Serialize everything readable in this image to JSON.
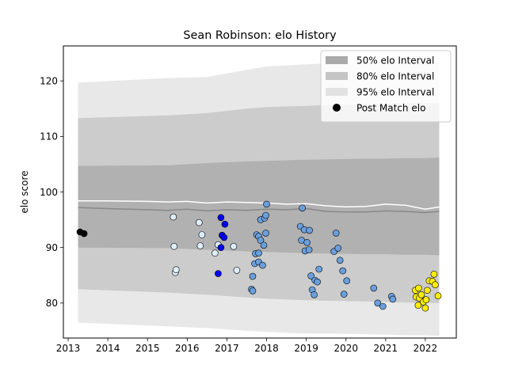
{
  "chart_data": {
    "type": "scatter",
    "title": "Sean Robinson: elo History",
    "xlabel": "",
    "ylabel": "elo score",
    "xlim": [
      2012.88,
      2022.78
    ],
    "ylim": [
      73.7,
      126.3
    ],
    "xticks": [
      2013,
      2014,
      2015,
      2016,
      2017,
      2018,
      2019,
      2020,
      2021,
      2022
    ],
    "yticks": [
      80,
      90,
      100,
      110,
      120
    ],
    "grid": false,
    "legend_position": "top-right",
    "legend": [
      {
        "label": "50% elo Interval",
        "kind": "band",
        "color": "#aaaaaa"
      },
      {
        "label": "80% elo Interval",
        "kind": "band",
        "color": "#c4c4c4"
      },
      {
        "label": "95% elo Interval",
        "kind": "band",
        "color": "#e2e2e2"
      },
      {
        "label": "Post Match elo",
        "kind": "marker",
        "color": "#000000"
      }
    ],
    "bands": {
      "x": [
        2013.25,
        2015.5,
        2016.5,
        2017.5,
        2018.0,
        2019.0,
        2019.7,
        2020.5,
        2021.0,
        2021.5,
        2022.0,
        2022.35
      ],
      "p95_upper": [
        119.7,
        120.5,
        120.7,
        122.0,
        122.6,
        123.0,
        123.2,
        123.3,
        123.4,
        123.5,
        123.5,
        123.6
      ],
      "p95_lower": [
        76.5,
        75.8,
        75.5,
        75.0,
        74.8,
        74.5,
        74.5,
        74.4,
        74.3,
        74.2,
        74.2,
        74.1
      ],
      "p80_upper": [
        113.3,
        113.8,
        114.2,
        115.0,
        115.3,
        115.5,
        115.7,
        115.8,
        115.9,
        116.0,
        116.0,
        116.0
      ],
      "p80_lower": [
        82.5,
        81.9,
        81.5,
        81.0,
        80.8,
        80.5,
        80.4,
        80.3,
        80.2,
        80.1,
        80.0,
        80.0
      ],
      "p50_upper": [
        104.7,
        104.8,
        105.2,
        105.5,
        105.6,
        105.8,
        105.9,
        106.0,
        106.0,
        106.1,
        106.1,
        106.2
      ],
      "p50_lower": [
        90.0,
        89.9,
        89.6,
        89.3,
        89.2,
        89.0,
        88.9,
        88.8,
        88.8,
        88.7,
        88.7,
        88.6
      ]
    },
    "median_line": {
      "color": "#888888",
      "x": [
        2013.25,
        2014.0,
        2015.0,
        2015.5,
        2016.0,
        2016.5,
        2017.0,
        2017.5,
        2018.0,
        2018.5,
        2019.0,
        2019.5,
        2020.0,
        2020.5,
        2021.0,
        2021.5,
        2022.0,
        2022.35
      ],
      "y": [
        97.2,
        97.0,
        96.8,
        96.7,
        96.9,
        96.6,
        96.8,
        96.7,
        96.9,
        96.8,
        97.0,
        96.5,
        96.4,
        96.4,
        96.6,
        96.5,
        96.3,
        96.5
      ]
    },
    "mean_line": {
      "color": "#ffffff",
      "x": [
        2013.25,
        2014.0,
        2015.0,
        2015.5,
        2016.0,
        2016.5,
        2017.0,
        2017.5,
        2018.0,
        2018.5,
        2019.0,
        2019.5,
        2020.0,
        2020.5,
        2021.0,
        2021.5,
        2022.0,
        2022.35
      ],
      "y": [
        98.4,
        98.4,
        98.3,
        98.2,
        98.3,
        98.0,
        98.2,
        98.1,
        98.0,
        97.8,
        97.9,
        97.5,
        97.3,
        97.4,
        97.8,
        97.6,
        96.9,
        97.3
      ]
    },
    "series": [
      {
        "color": "#000000",
        "points": [
          [
            2013.3,
            92.8
          ],
          [
            2013.4,
            92.5
          ]
        ]
      },
      {
        "color": "#ddeeff",
        "points": [
          [
            2015.65,
            95.5
          ],
          [
            2015.67,
            90.2
          ],
          [
            2015.7,
            85.5
          ],
          [
            2015.72,
            86.0
          ],
          [
            2016.3,
            94.5
          ],
          [
            2016.33,
            90.3
          ],
          [
            2016.37,
            92.3
          ],
          [
            2016.7,
            89.0
          ],
          [
            2016.78,
            90.5
          ],
          [
            2017.17,
            90.2
          ],
          [
            2017.25,
            85.9
          ]
        ]
      },
      {
        "color": "#0000ee",
        "points": [
          [
            2016.78,
            85.3
          ],
          [
            2016.85,
            95.4
          ],
          [
            2016.85,
            90.0
          ],
          [
            2016.88,
            92.2
          ],
          [
            2016.93,
            91.8
          ],
          [
            2016.95,
            94.2
          ]
        ]
      },
      {
        "color": "#6a9fdd",
        "points": [
          [
            2017.62,
            82.5
          ],
          [
            2017.65,
            82.2
          ],
          [
            2017.65,
            84.8
          ],
          [
            2017.7,
            87.1
          ],
          [
            2017.72,
            88.9
          ],
          [
            2017.75,
            92.3
          ],
          [
            2017.8,
            92.0
          ],
          [
            2017.8,
            89.0
          ],
          [
            2017.8,
            87.4
          ],
          [
            2017.85,
            91.3
          ],
          [
            2017.85,
            95.0
          ],
          [
            2017.9,
            86.8
          ],
          [
            2017.93,
            90.4
          ],
          [
            2017.95,
            95.3
          ],
          [
            2017.98,
            92.6
          ],
          [
            2017.98,
            95.8
          ],
          [
            2018.0,
            97.8
          ],
          [
            2018.85,
            93.8
          ],
          [
            2018.88,
            91.3
          ],
          [
            2018.9,
            97.1
          ],
          [
            2018.95,
            93.2
          ],
          [
            2018.97,
            89.4
          ],
          [
            2019.02,
            90.9
          ],
          [
            2019.07,
            89.6
          ],
          [
            2019.08,
            93.1
          ],
          [
            2019.12,
            84.9
          ],
          [
            2019.15,
            82.4
          ],
          [
            2019.2,
            81.5
          ],
          [
            2019.22,
            84.1
          ],
          [
            2019.28,
            83.8
          ],
          [
            2019.32,
            86.1
          ],
          [
            2019.7,
            89.3
          ],
          [
            2019.75,
            92.6
          ],
          [
            2019.8,
            89.9
          ],
          [
            2019.85,
            87.7
          ],
          [
            2019.92,
            85.8
          ],
          [
            2019.95,
            81.6
          ],
          [
            2020.02,
            84.0
          ],
          [
            2020.7,
            82.7
          ],
          [
            2020.8,
            80.0
          ],
          [
            2020.93,
            79.4
          ],
          [
            2021.15,
            81.2
          ],
          [
            2021.18,
            80.7
          ]
        ]
      },
      {
        "color": "#ffee00",
        "points": [
          [
            2021.75,
            82.3
          ],
          [
            2021.77,
            81.1
          ],
          [
            2021.82,
            79.6
          ],
          [
            2021.83,
            82.7
          ],
          [
            2021.85,
            80.9
          ],
          [
            2021.9,
            81.5
          ],
          [
            2021.95,
            80.2
          ],
          [
            2022.0,
            79.1
          ],
          [
            2022.02,
            80.6
          ],
          [
            2022.05,
            82.3
          ],
          [
            2022.1,
            84.0
          ],
          [
            2022.18,
            83.9
          ],
          [
            2022.22,
            85.2
          ],
          [
            2022.25,
            83.3
          ],
          [
            2022.32,
            81.3
          ]
        ]
      }
    ]
  }
}
